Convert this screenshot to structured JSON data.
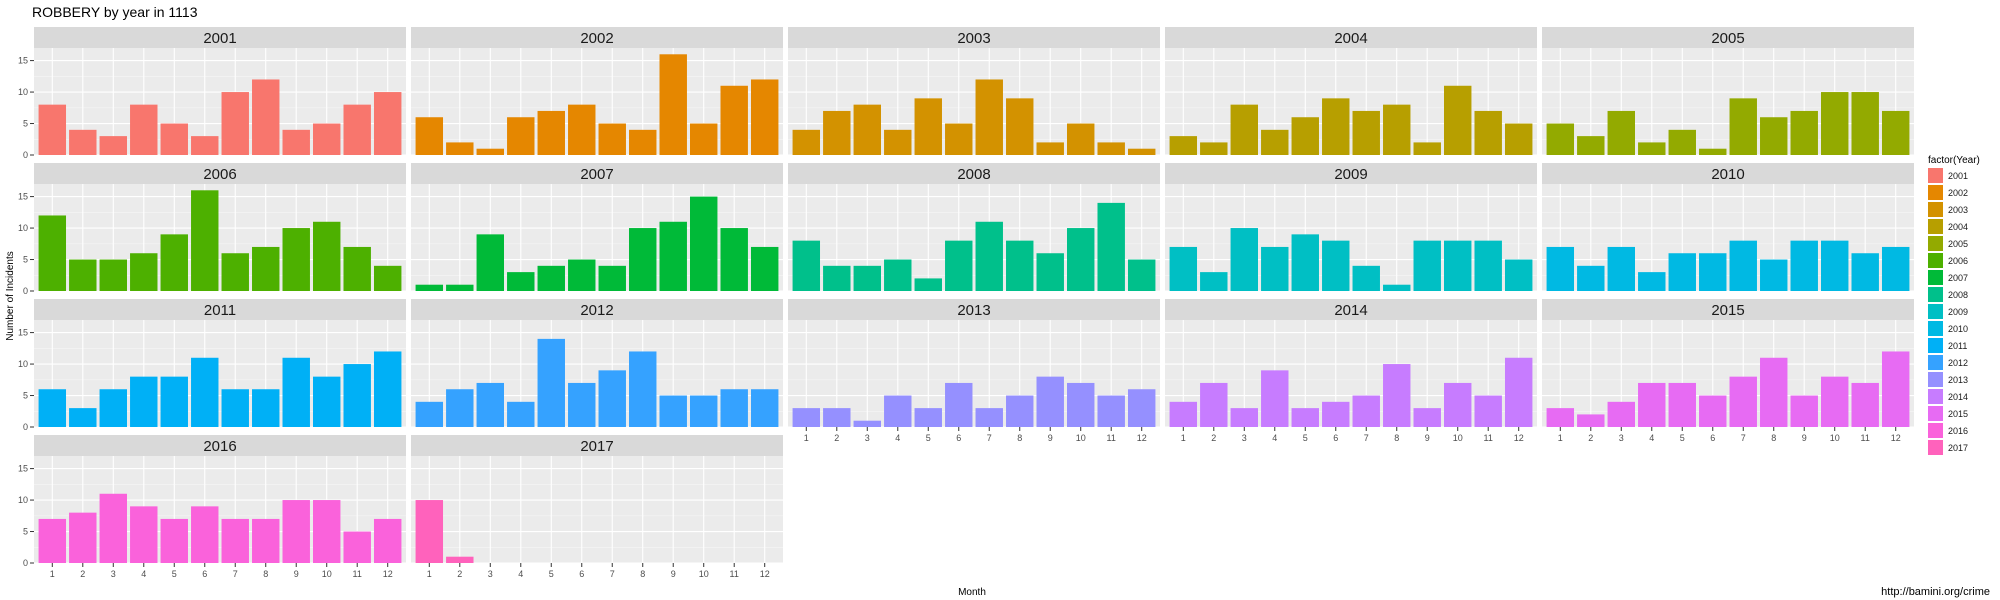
{
  "chart_data": {
    "type": "bar",
    "title": "ROBBERY by year in 1113",
    "xlabel": "Month",
    "ylabel": "Number of Incidents",
    "caption": "http://bamini.org/crime",
    "legend_title": "factor(Year)",
    "legend_position": "right",
    "grid": true,
    "ylim": [
      0,
      17
    ],
    "yticks": [
      0,
      5,
      10,
      15
    ],
    "categories": [
      "1",
      "2",
      "3",
      "4",
      "5",
      "6",
      "7",
      "8",
      "9",
      "10",
      "11",
      "12"
    ],
    "series": [
      {
        "name": "2001",
        "color": "#F8766D",
        "values": [
          8,
          4,
          3,
          8,
          5,
          3,
          10,
          12,
          4,
          5,
          8,
          10
        ]
      },
      {
        "name": "2002",
        "color": "#E58700",
        "values": [
          6,
          2,
          1,
          6,
          7,
          8,
          5,
          4,
          16,
          5,
          11,
          12
        ]
      },
      {
        "name": "2003",
        "color": "#D39200",
        "values": [
          4,
          7,
          8,
          4,
          9,
          5,
          12,
          9,
          2,
          5,
          2,
          1
        ]
      },
      {
        "name": "2004",
        "color": "#B79F00",
        "values": [
          3,
          2,
          8,
          4,
          6,
          9,
          7,
          8,
          2,
          11,
          7,
          5
        ]
      },
      {
        "name": "2005",
        "color": "#93AA00",
        "values": [
          5,
          3,
          7,
          2,
          4,
          1,
          9,
          6,
          7,
          10,
          10,
          7
        ]
      },
      {
        "name": "2006",
        "color": "#4DB000",
        "values": [
          12,
          5,
          5,
          6,
          9,
          16,
          6,
          7,
          10,
          11,
          7,
          4
        ]
      },
      {
        "name": "2007",
        "color": "#00BA38",
        "values": [
          1,
          1,
          9,
          3,
          4,
          5,
          4,
          10,
          11,
          15,
          10,
          7
        ]
      },
      {
        "name": "2008",
        "color": "#00C08B",
        "values": [
          8,
          4,
          4,
          5,
          2,
          8,
          11,
          8,
          6,
          10,
          14,
          5
        ]
      },
      {
        "name": "2009",
        "color": "#00BFC4",
        "values": [
          7,
          3,
          10,
          7,
          9,
          8,
          4,
          1,
          8,
          8,
          8,
          5
        ]
      },
      {
        "name": "2010",
        "color": "#00B9E3",
        "values": [
          7,
          4,
          7,
          3,
          6,
          6,
          8,
          5,
          8,
          8,
          6,
          7
        ]
      },
      {
        "name": "2011",
        "color": "#00B0F6",
        "values": [
          6,
          3,
          6,
          8,
          8,
          11,
          6,
          6,
          11,
          8,
          10,
          12
        ]
      },
      {
        "name": "2012",
        "color": "#35A2FF",
        "values": [
          4,
          6,
          7,
          4,
          14,
          7,
          9,
          12,
          5,
          5,
          6,
          6
        ]
      },
      {
        "name": "2013",
        "color": "#9590FF",
        "values": [
          3,
          3,
          1,
          5,
          3,
          7,
          3,
          5,
          8,
          7,
          5,
          6
        ]
      },
      {
        "name": "2014",
        "color": "#C77CFF",
        "values": [
          4,
          7,
          3,
          9,
          3,
          4,
          5,
          10,
          3,
          7,
          5,
          11
        ]
      },
      {
        "name": "2015",
        "color": "#E76BF3",
        "values": [
          3,
          2,
          4,
          7,
          7,
          5,
          8,
          11,
          5,
          8,
          7,
          12
        ]
      },
      {
        "name": "2016",
        "color": "#FA62DB",
        "values": [
          7,
          8,
          11,
          9,
          7,
          9,
          7,
          7,
          10,
          10,
          5,
          7
        ]
      },
      {
        "name": "2017",
        "color": "#FF62BC",
        "values": [
          10,
          1,
          0,
          0,
          0,
          0,
          0,
          0,
          0,
          0,
          0,
          0
        ]
      }
    ]
  }
}
